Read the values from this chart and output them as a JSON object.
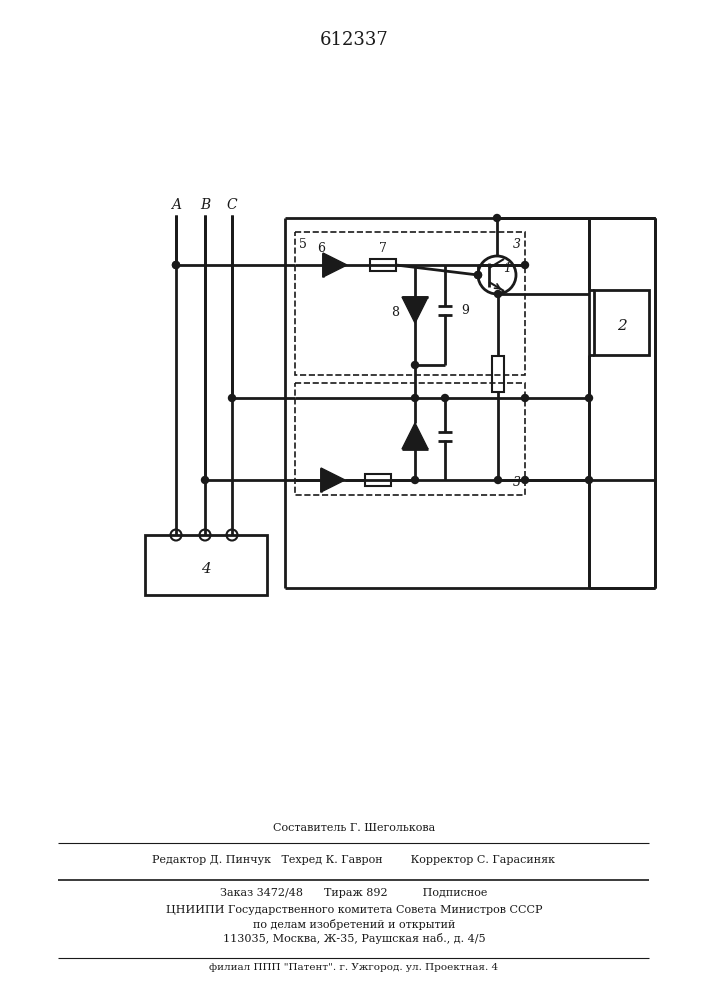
{
  "title": "612337",
  "title_fontsize": 13,
  "bg_color": "#ffffff",
  "line_color": "#1a1a1a",
  "fig_width": 7.07,
  "fig_height": 10.0,
  "footer": {
    "line1": "Составитель Г. Шеголькова",
    "line2": "Редактор Д. Пинчук   Техред К. Гаврон        Корректор С. Гарасиняк",
    "line3": "Заказ 3472/48      Тираж 892          Подписное",
    "line4": "ЦНИИПИ Государственного комитета Совета Министров СССР",
    "line5": "по делам изобретений и открытий",
    "line6": "113035, Москва, Ж-35, Раушская наб., д. 4/5",
    "line7": "филиал ППП \"Патент\". г. Ужгород. ул. Проектная. 4"
  }
}
